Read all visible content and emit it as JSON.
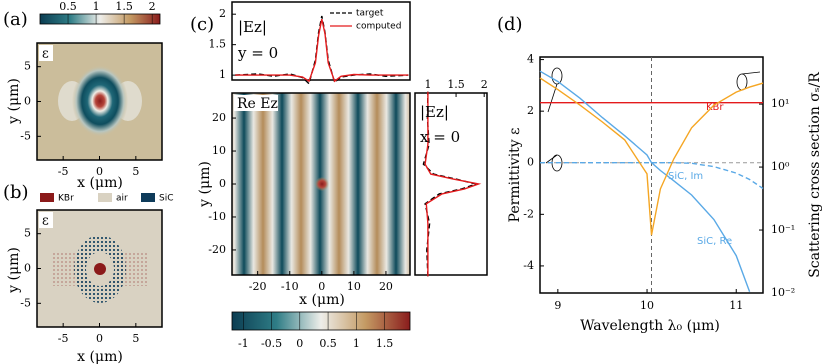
{
  "chart_data": [
    {
      "type": "heatmap",
      "label": "(a)",
      "inset_label": "ε",
      "xlabel": "x (μm)",
      "ylabel": "y (μm)",
      "xlim": [
        -8.6,
        8.6
      ],
      "ylim": [
        -8.4,
        8.4
      ],
      "xticks": [
        -5,
        0,
        5
      ],
      "yticks": [
        -5,
        0,
        5
      ],
      "colorbar": {
        "lim": [
          0,
          2.14
        ],
        "ticks": [
          0.5,
          1,
          1.5,
          2
        ]
      },
      "colormap": [
        "#0b3d52",
        "#2f7d86",
        "#eeeeea",
        "#c49a63",
        "#8a1c1c"
      ]
    },
    {
      "type": "heatmap",
      "label": "(b)",
      "inset_label": "ε",
      "xlabel": "x (μm)",
      "ylabel": "y (μm)",
      "xlim": [
        -8.6,
        8.6
      ],
      "ylim": [
        -8.4,
        8.4
      ],
      "xticks": [
        -5,
        0,
        5
      ],
      "yticks": [
        -5,
        0,
        5
      ],
      "legend": [
        {
          "name": "KBr",
          "color": "#8b1a1a"
        },
        {
          "name": "air",
          "color": "#d9d2c2"
        },
        {
          "name": "SiC",
          "color": "#0e3b5a"
        }
      ]
    },
    {
      "type": "heatmap",
      "label": "(c)",
      "inset_label": "Re Ez",
      "xlabel": "x (μm)",
      "ylabel": "y (μm)",
      "xlim": [
        -28,
        27.5
      ],
      "ylim": [
        -27.6,
        27.6
      ],
      "xticks": [
        -20,
        -10,
        0,
        10,
        20
      ],
      "yticks": [
        -20,
        -10,
        0,
        10,
        20
      ],
      "colorbar": {
        "lim": [
          -1.2,
          1.95
        ],
        "ticks": [
          -1,
          -0.5,
          0,
          0.5,
          1,
          1.5
        ]
      },
      "colormap": [
        "#0b3d52",
        "#2f7d86",
        "#eeeeea",
        "#c49a63",
        "#8a1c1c"
      ]
    },
    {
      "type": "line",
      "title": "|Ez|",
      "subtitle": "y = 0",
      "x": [
        -27,
        -20,
        -15,
        -10,
        -6,
        -4,
        -2,
        -1,
        0,
        1,
        2,
        4,
        6,
        10,
        15,
        20,
        27
      ],
      "xlim": [
        -28,
        27.5
      ],
      "ylim": [
        0.92,
        2.2
      ],
      "yticks": [
        1,
        1.5,
        2
      ],
      "series": [
        {
          "name": "target",
          "color": "#000000",
          "dash": true,
          "values": [
            1,
            1.02,
            0.98,
            1.02,
            0.96,
            0.86,
            1.25,
            1.7,
            1.97,
            1.7,
            1.25,
            0.88,
            0.97,
            1.0,
            1.02,
            0.98,
            1.0
          ]
        },
        {
          "name": "computed",
          "color": "#e41a1c",
          "values": [
            1,
            1.0,
            1.0,
            1.0,
            0.97,
            0.9,
            1.2,
            1.65,
            1.92,
            1.68,
            1.2,
            0.9,
            0.98,
            1.01,
            1.0,
            1.0,
            1.0
          ]
        }
      ]
    },
    {
      "type": "profile",
      "title": "|Ez|",
      "subtitle": "x = 0",
      "y": [
        -28,
        -20,
        -12,
        -6,
        -3,
        -1.5,
        0,
        1.5,
        3,
        6,
        12,
        20,
        28
      ],
      "ylim": [
        -27.6,
        27.6
      ],
      "xlim": [
        0.77,
        2.05
      ],
      "xticks": [
        1,
        1.5,
        2
      ],
      "series": [
        {
          "name": "target",
          "color": "#000000",
          "dash": true,
          "values": [
            1,
            0.98,
            1.03,
            0.95,
            1.2,
            1.6,
            1.85,
            1.5,
            1.1,
            0.92,
            1.02,
            0.99,
            1.0
          ]
        },
        {
          "name": "computed",
          "color": "#e41a1c",
          "values": [
            1,
            1.0,
            1.0,
            0.97,
            1.25,
            1.65,
            1.9,
            1.45,
            1.05,
            0.95,
            1.0,
            1.0,
            1.0
          ]
        }
      ]
    },
    {
      "type": "line",
      "label": "(d)",
      "xlabel": "Wavelength λ₀ (μm)",
      "ylabel": "Permittivity ε",
      "y2label": "Scattering cross section σₛ/R",
      "x": [
        8.8,
        9,
        9.25,
        9.5,
        9.75,
        10,
        10.05,
        10.15,
        10.3,
        10.5,
        10.75,
        11,
        11.15,
        11.3
      ],
      "xlim": [
        8.8,
        11.3
      ],
      "xticks": [
        9,
        10,
        11
      ],
      "ylim": [
        -5.05,
        4.1
      ],
      "yticks": [
        -4,
        -2,
        0,
        2,
        4
      ],
      "y2lim": [
        0.01,
        56
      ],
      "y2log": true,
      "y2ticks": [
        {
          "value": 10,
          "label": "10¹"
        },
        {
          "value": 1,
          "label": "10⁰"
        },
        {
          "value": 0.1,
          "label": "10⁻¹"
        },
        {
          "value": 0.01,
          "label": "10⁻²"
        }
      ],
      "vline": 10.05,
      "hline": 0,
      "series": [
        {
          "name": "KBr",
          "color": "#e41a1c",
          "values": [
            2.33,
            2.33,
            2.33,
            2.33,
            2.33,
            2.33,
            2.33,
            2.33,
            2.33,
            2.33,
            2.33,
            2.33,
            2.33,
            2.33
          ]
        },
        {
          "name": "SiC, Re",
          "color": "#5aa9e6",
          "values": [
            3.55,
            3.15,
            2.5,
            1.75,
            1.05,
            0.3,
            0.0,
            -0.3,
            -0.7,
            -1.25,
            -2.2,
            -3.6,
            -5.0,
            null
          ]
        },
        {
          "name": "SiC, Im",
          "color": "#5aa9e6",
          "dash": true,
          "values": [
            0,
            0,
            0,
            0,
            0,
            0,
            0,
            0,
            0,
            -0.02,
            -0.15,
            -0.4,
            -0.65,
            -1.0
          ]
        },
        {
          "axis": "y2",
          "color": "#f5a623",
          "values": [
            26,
            17,
            9.6,
            5.2,
            2.7,
            0.78,
            0.083,
            0.45,
            1.35,
            4.2,
            9.6,
            15.5,
            18.6,
            21.6
          ]
        }
      ]
    }
  ]
}
